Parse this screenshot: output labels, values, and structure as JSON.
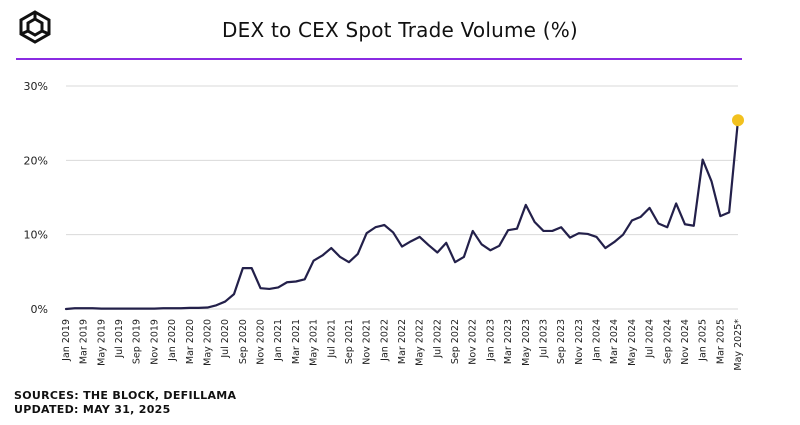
{
  "title": "DEX to CEX Spot Trade Volume (%)",
  "footer": {
    "sources": "SOURCES: THE BLOCK, DEFILLAMA",
    "updated": "UPDATED: MAY 31, 2025"
  },
  "colors": {
    "line": "#23204a",
    "accent": "#8a2be2",
    "highlight": "#f2c11e",
    "grid": "#d9d9d9"
  },
  "chart_data": {
    "type": "line",
    "ylim": [
      0,
      30
    ],
    "y_ticks": [
      "0%",
      "10%",
      "20%",
      "30%"
    ],
    "y_tick_values": [
      0,
      10,
      20,
      30
    ],
    "x_tick_labels": [
      "Jan 2019",
      "Mar 2019",
      "May 2019",
      "Jul 2019",
      "Sep 2019",
      "Nov 2019",
      "Jan 2020",
      "Mar 2020",
      "May 2020",
      "Jul 2020",
      "Sep 2020",
      "Nov 2020",
      "Jan 2021",
      "Mar 2021",
      "May 2021",
      "Jul 2021",
      "Sep 2021",
      "Nov 2021",
      "Jan 2022",
      "Mar 2022",
      "May 2022",
      "Jul 2022",
      "Sep 2022",
      "Nov 2022",
      "Jan 2023",
      "Mar 2023",
      "May 2023",
      "Jul 2023",
      "Sep 2023",
      "Nov 2023",
      "Jan 2024",
      "Mar 2024",
      "May 2024",
      "Jul 2024",
      "Sep 2024",
      "Nov 2024",
      "Jan 2025",
      "Mar 2025",
      "May 2025*"
    ],
    "x": [
      "Jan 2019",
      "Feb 2019",
      "Mar 2019",
      "Apr 2019",
      "May 2019",
      "Jun 2019",
      "Jul 2019",
      "Aug 2019",
      "Sep 2019",
      "Oct 2019",
      "Nov 2019",
      "Dec 2019",
      "Jan 2020",
      "Feb 2020",
      "Mar 2020",
      "Apr 2020",
      "May 2020",
      "Jun 2020",
      "Jul 2020",
      "Aug 2020",
      "Sep 2020",
      "Oct 2020",
      "Nov 2020",
      "Dec 2020",
      "Jan 2021",
      "Feb 2021",
      "Mar 2021",
      "Apr 2021",
      "May 2021",
      "Jun 2021",
      "Jul 2021",
      "Aug 2021",
      "Sep 2021",
      "Oct 2021",
      "Nov 2021",
      "Dec 2021",
      "Jan 2022",
      "Feb 2022",
      "Mar 2022",
      "Apr 2022",
      "May 2022",
      "Jun 2022",
      "Jul 2022",
      "Aug 2022",
      "Sep 2022",
      "Oct 2022",
      "Nov 2022",
      "Dec 2022",
      "Jan 2023",
      "Feb 2023",
      "Mar 2023",
      "Apr 2023",
      "May 2023",
      "Jun 2023",
      "Jul 2023",
      "Aug 2023",
      "Sep 2023",
      "Oct 2023",
      "Nov 2023",
      "Dec 2023",
      "Jan 2024",
      "Feb 2024",
      "Mar 2024",
      "Apr 2024",
      "May 2024",
      "Jun 2024",
      "Jul 2024",
      "Aug 2024",
      "Sep 2024",
      "Oct 2024",
      "Nov 2024",
      "Dec 2024",
      "Jan 2025",
      "Feb 2025",
      "Mar 2025",
      "Apr 2025",
      "May 2025*"
    ],
    "series": [
      {
        "values": [
          0.0,
          0.1,
          0.1,
          0.1,
          0.05,
          0.05,
          0.05,
          0.05,
          0.05,
          0.05,
          0.05,
          0.1,
          0.1,
          0.1,
          0.15,
          0.15,
          0.2,
          0.5,
          1.0,
          2.0,
          5.5,
          5.5,
          2.8,
          2.7,
          2.9,
          3.6,
          3.7,
          4.0,
          6.5,
          7.2,
          8.2,
          7.0,
          6.3,
          7.4,
          10.2,
          11.0,
          11.3,
          10.3,
          8.4,
          9.1,
          9.7,
          8.6,
          7.6,
          8.9,
          6.3,
          7.0,
          10.5,
          8.7,
          7.9,
          8.5,
          10.6,
          10.8,
          14.0,
          11.7,
          10.5,
          10.5,
          11.0,
          9.6,
          10.2,
          10.1,
          9.7,
          8.2,
          9.0,
          10.0,
          11.9,
          12.4,
          13.6,
          11.5,
          11.0,
          14.2,
          11.4,
          11.2,
          20.1,
          17.2,
          12.5,
          13.0,
          25.4
        ]
      }
    ],
    "highlight_point": {
      "x": "May 2025*",
      "y": 25.4
    }
  }
}
